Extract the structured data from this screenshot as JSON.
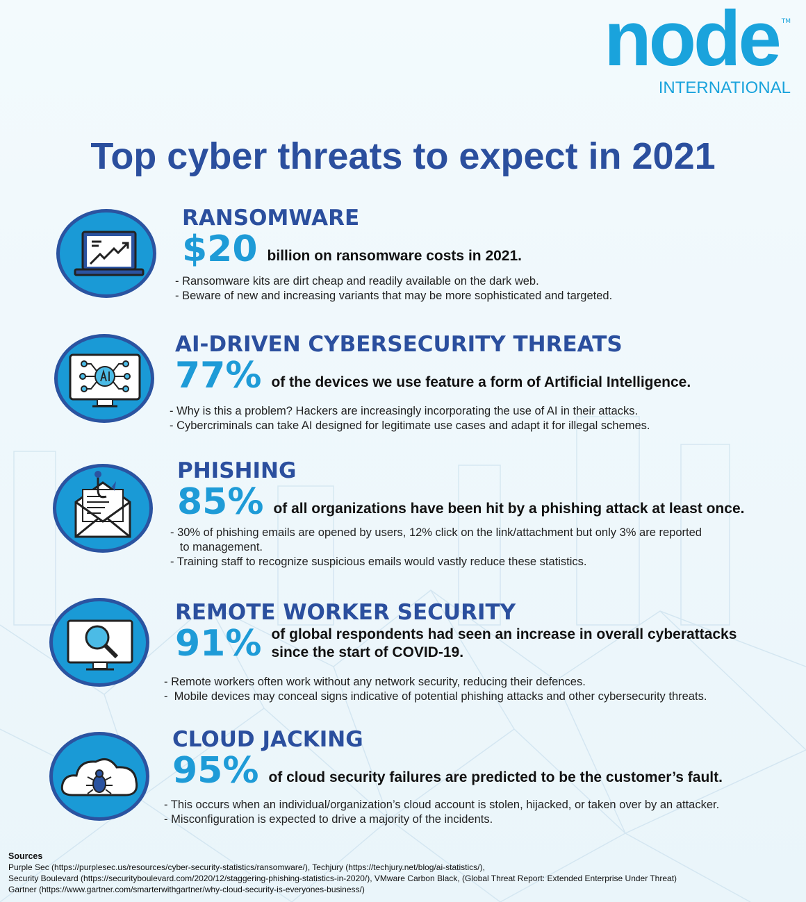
{
  "logo": {
    "word": "node",
    "tm": "TM",
    "sub": "INTERNATIONAL"
  },
  "title": "Top cyber threats to expect in 2021",
  "colors": {
    "heading": "#2b4f9e",
    "stat": "#1e9bd7",
    "circle": "#1a9ad6",
    "circle_border": "#2b53a0",
    "logo": "#1aa3dc"
  },
  "sections": [
    {
      "icon": "laptop-chart-icon",
      "heading": "RANSOMWARE",
      "stat": "$20",
      "desc": [
        "billion on ransomware costs in 2021."
      ],
      "bullets": [
        "- Ransomware kits are dirt cheap and readily available on the dark web.",
        "- Beware of new and increasing variants that may be more sophisticated and targeted."
      ]
    },
    {
      "icon": "ai-monitor-icon",
      "heading": "AI-DRIVEN CYBERSECURITY THREATS",
      "stat": "77%",
      "desc": [
        "of the devices we use feature a form of Artificial Intelligence."
      ],
      "bullets": [
        "- Why is this a problem? Hackers are increasingly incorporating the use of AI in their attacks.",
        "- Cybercriminals can take AI designed for legitimate use cases and adapt it for illegal schemes."
      ]
    },
    {
      "icon": "phishing-envelope-icon",
      "heading": "PHISHING",
      "stat": "85%",
      "desc": [
        "of all organizations have been hit by a phishing attack at least once."
      ],
      "bullets": [
        "- 30% of phishing emails are opened by users, 12% click on the link/attachment but only 3% are reported",
        "   to management.",
        "- Training staff to recognize suspicious emails would vastly reduce these statistics."
      ]
    },
    {
      "icon": "monitor-magnifier-icon",
      "heading": "REMOTE WORKER SECURITY",
      "stat": "91%",
      "desc": [
        "of global respondents had seen an increase in overall cyberattacks",
        "since the start of COVID-19."
      ],
      "bullets": [
        "- Remote workers often work without any network security, reducing their defences.",
        "-  Mobile devices may conceal signs indicative of potential phishing attacks and other cybersecurity threats."
      ]
    },
    {
      "icon": "cloud-bug-icon",
      "heading": "CLOUD JACKING",
      "stat": "95%",
      "desc": [
        "of cloud security failures are predicted to be the customer’s fault."
      ],
      "bullets": [
        "- This occurs when an individual/organization’s cloud account is stolen, hijacked, or taken over by an attacker.",
        "- Misconfiguration is expected to drive a majority of the incidents."
      ]
    }
  ],
  "sources": {
    "label": "Sources",
    "lines": [
      "Purple Sec (https://purplesec.us/resources/cyber-security-statistics/ransomware/), Techjury (https://techjury.net/blog/ai-statistics/),",
      "Security Boulevard (https://securityboulevard.com/2020/12/staggering-phishing-statistics-in-2020/), VMware Carbon Black, (Global Threat Report: Extended Enterprise Under Threat)",
      "Gartner (https://www.gartner.com/smarterwithgartner/why-cloud-security-is-everyones-business/)"
    ]
  }
}
